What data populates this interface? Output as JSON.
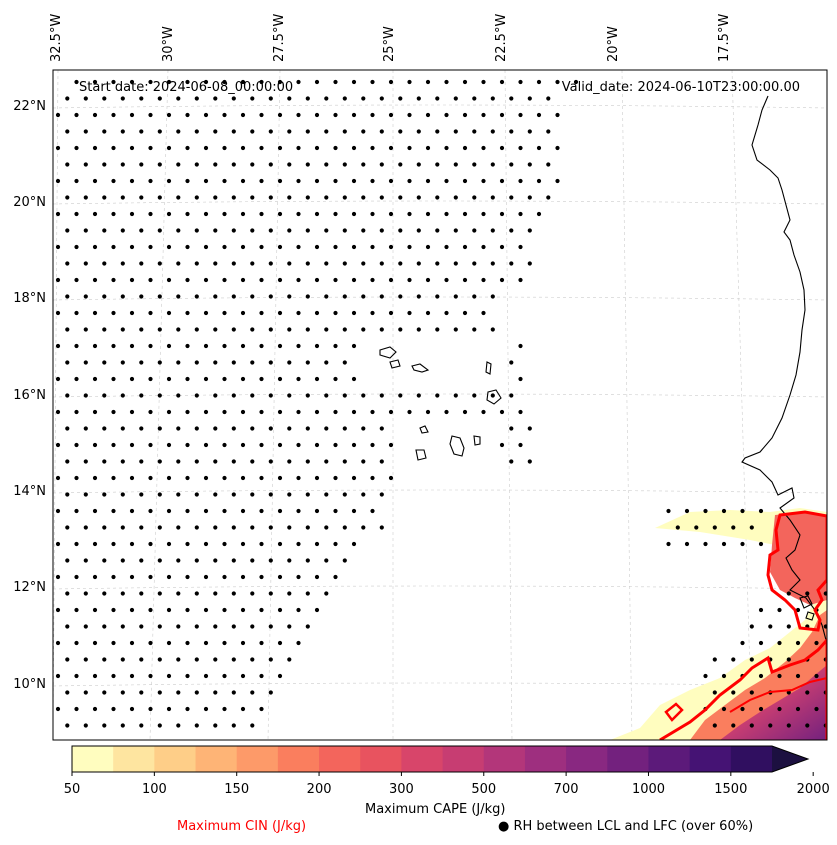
{
  "map": {
    "start_date": "Start date: 2024-06-08_00:00:00",
    "valid_date": "Valid_date: 2024-06-10T23:00:00.00",
    "lon_labels": [
      "32.5°W",
      "30°W",
      "27.5°W",
      "25°W",
      "22.5°W",
      "20°W",
      "17.5°W"
    ],
    "lat_labels": [
      "22°N",
      "20°N",
      "18°N",
      "16°N",
      "14°N",
      "12°N",
      "10°N"
    ],
    "extent": {
      "lon_min": -33.0,
      "lon_max": -16.0,
      "lat_min": 9.0,
      "lat_max": 22.7
    },
    "stipple_color": "#000000",
    "coastline_color": "#000000",
    "cin_contour_color": "#ff0000"
  },
  "colorbar": {
    "ticks": [
      "50",
      "100",
      "150",
      "200",
      "300",
      "500",
      "700",
      "1000",
      "1500",
      "2000"
    ],
    "colors": [
      "#fffdbf",
      "#fee5a0",
      "#fece88",
      "#feb476",
      "#fd9a69",
      "#fa7e5e",
      "#f3655c",
      "#e8535f",
      "#d8456a",
      "#c73d72",
      "#b3367a",
      "#9e2f7f",
      "#892881",
      "#73217e",
      "#5c1a7a",
      "#451374",
      "#300f60",
      "#1c1040"
    ],
    "label": "Maximum CAPE (J/kg)"
  },
  "legend": {
    "cin_label": "Maximum CIN (J/kg)",
    "rh_label": "RH between LCL and LFC (over 60%)",
    "rh_marker": "●"
  }
}
